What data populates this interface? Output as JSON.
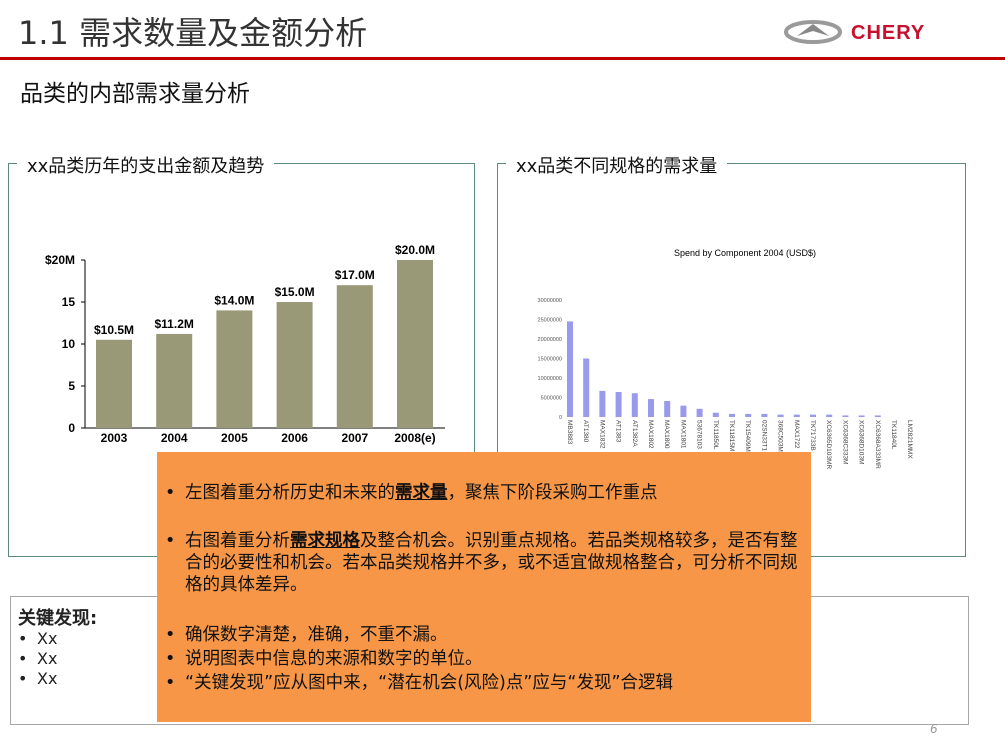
{
  "header": {
    "title": "1.1 需求数量及金额分析",
    "subtitle": "品类的内部需求量分析",
    "logo_text": "CHERY",
    "brand_color": "#c00000"
  },
  "left_panel": {
    "title": "xx品类历年的支出金额及趋势"
  },
  "right_panel": {
    "title": "xx品类不同规格的需求量"
  },
  "chart_data": [
    {
      "type": "bar",
      "title": "",
      "categories": [
        "2003",
        "2004",
        "2005",
        "2006",
        "2007",
        "2008(e)"
      ],
      "values": [
        10.5,
        11.2,
        14.0,
        15.0,
        17.0,
        20.0
      ],
      "data_labels": [
        "$10.5M",
        "$11.2M",
        "$14.0M",
        "$15.0M",
        "$17.0M",
        "$20.0M"
      ],
      "yticks": [
        "0",
        "5",
        "10",
        "15",
        "$20M"
      ],
      "ylim": [
        0,
        20
      ],
      "color": "#999977",
      "grid": false
    },
    {
      "type": "bar",
      "title": "Spend by Component 2004 (USD$)",
      "categories": [
        "MB3883",
        "AT1380",
        "MAX1832",
        "AT1383",
        "AT1382A",
        "MAX1802",
        "MAX1800",
        "MAX1801",
        "53678103",
        "TK11850L",
        "TK11815M",
        "TK15409M",
        "02SN33T1",
        "368C503M",
        "MAX1722",
        "TK71733B",
        "XC6365D103MR",
        "XC6368C333M",
        "XC6368D103M",
        "XC6368A333MR",
        "TK11840L",
        "LM2821MMX"
      ],
      "values": [
        24500000,
        15000000,
        6700000,
        6400000,
        6100000,
        4600000,
        4100000,
        2900000,
        2100000,
        1100000,
        800000,
        800000,
        800000,
        600000,
        600000,
        600000,
        600000,
        400000,
        400000,
        400000,
        0,
        0
      ],
      "yticks": [
        "0",
        "5000000",
        "10000000",
        "15000000",
        "20000000",
        "25000000",
        "30000000"
      ],
      "ylim": [
        0,
        30000000
      ],
      "color": "#9999ee",
      "grid": false
    }
  ],
  "key_findings": {
    "title": "关键发现:",
    "items": [
      "Xx",
      "Xx",
      "Xx"
    ]
  },
  "notes": {
    "bullet": "•",
    "items": [
      {
        "pre": "左图着重分析历史和未来的",
        "bold": "需求量",
        "post": "，聚焦下阶段采购工作重点"
      },
      {
        "pre": "右图着重分析",
        "bold": "需求规格",
        "post": "及整合机会。识别重点规格。若品类规格较多，是否有整合的必要性和机会。若本品类规格并不多，或不适宜做规格整合，可分析不同规格的具体差异。"
      },
      {
        "pre": "确保数字清楚，准确，不重不漏。",
        "bold": "",
        "post": ""
      },
      {
        "pre": "说明图表中信息的来源和数字的单位。",
        "bold": "",
        "post": ""
      },
      {
        "pre": "“关键发现”应从图中来，“潜在机会(风险)点”应与“发现”合逻辑",
        "bold": "",
        "post": ""
      }
    ]
  },
  "page_number": "6"
}
